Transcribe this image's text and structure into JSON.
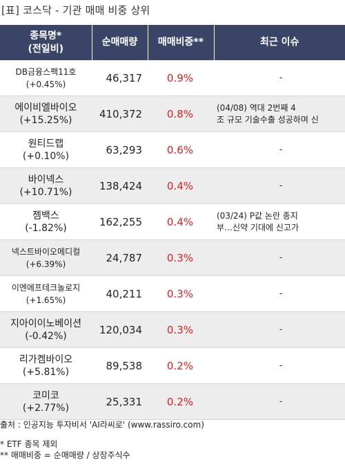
{
  "title": "[표] 코스닥 - 기관 매매 비중 상위",
  "header": {
    "name_line1": "종목명*",
    "name_line2": "(전일비)",
    "volume": "순매매량",
    "ratio": "매매비중**",
    "issue": "최근 이슈"
  },
  "rows": [
    {
      "name": "DB금융스팩11호",
      "change": "(+0.45%)",
      "volume": "46,317",
      "ratio": "0.9%",
      "issue1": "-",
      "issue2": ""
    },
    {
      "name": "에이비엘바이오",
      "change": "(+15.25%)",
      "volume": "410,372",
      "ratio": "0.8%",
      "issue1": "(04/08) 역대 2번째 4",
      "issue2": "조 규모 기술수출 성공하며 신"
    },
    {
      "name": "원티드랩",
      "change": "(+0.10%)",
      "volume": "63,293",
      "ratio": "0.6%",
      "issue1": "-",
      "issue2": ""
    },
    {
      "name": "바이넥스",
      "change": "(+10.71%)",
      "volume": "138,424",
      "ratio": "0.4%",
      "issue1": "-",
      "issue2": ""
    },
    {
      "name": "젬백스",
      "change": "(-1.82%)",
      "volume": "162,255",
      "ratio": "0.4%",
      "issue1": "(03/24) P값 논란 종지",
      "issue2": "부…신약 기대에 신고가"
    },
    {
      "name": "넥스트바이오메디컬",
      "change": "(+6.39%)",
      "volume": "24,787",
      "ratio": "0.3%",
      "issue1": "-",
      "issue2": ""
    },
    {
      "name": "이엔에프테크놀로지",
      "change": "(+1.65%)",
      "volume": "40,211",
      "ratio": "0.3%",
      "issue1": "-",
      "issue2": ""
    },
    {
      "name": "지아이이노베이션",
      "change": "(-0.42%)",
      "volume": "120,034",
      "ratio": "0.3%",
      "issue1": "-",
      "issue2": ""
    },
    {
      "name": "리가켐바이오",
      "change": "(+5.81%)",
      "volume": "89,538",
      "ratio": "0.2%",
      "issue1": "-",
      "issue2": ""
    },
    {
      "name": "코미코",
      "change": "(+2.77%)",
      "volume": "25,331",
      "ratio": "0.2%",
      "issue1": "-",
      "issue2": ""
    }
  ],
  "footer": {
    "source": "출처 : 인공지능 투자비서 'AI라씨로' (www.rassiro.com)",
    "note1": "* ETF 종목 제외",
    "note2": "** 매매비중 = 순매매량 / 상장주식수"
  }
}
